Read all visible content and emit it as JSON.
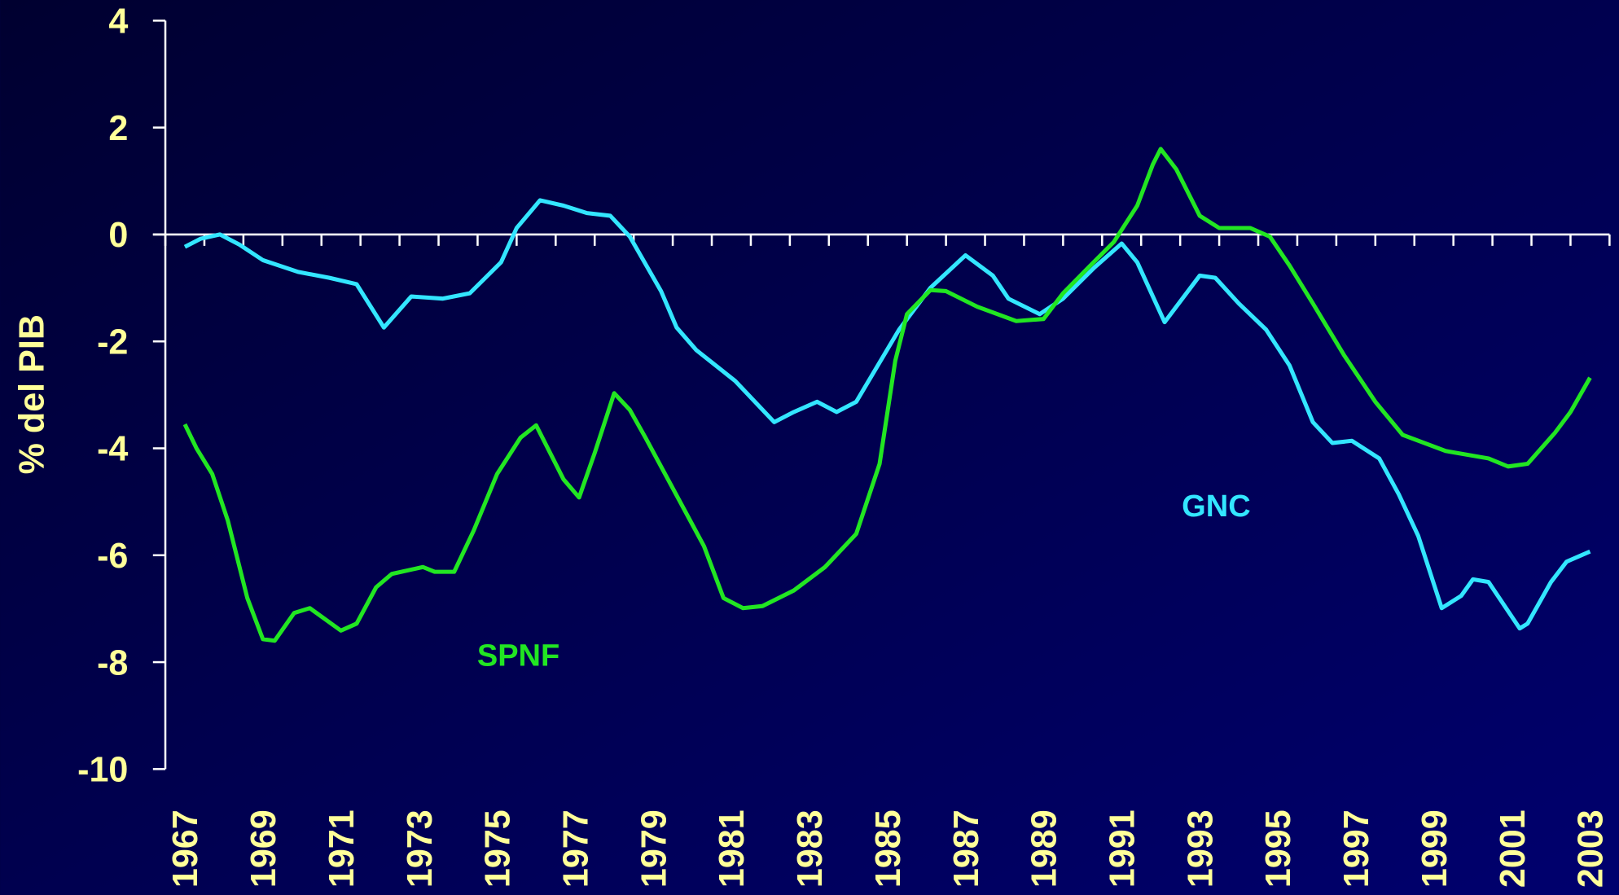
{
  "chart_data": {
    "type": "line",
    "ylabel": "% del PIB",
    "xlim": [
      1966.5,
      2003.5
    ],
    "xticks": [
      1967,
      1969,
      1971,
      1973,
      1975,
      1977,
      1979,
      1981,
      1983,
      1985,
      1987,
      1989,
      1991,
      1993,
      1995,
      1997,
      1999,
      2001,
      2003
    ],
    "ylim": [
      -10,
      4
    ],
    "yticks": [
      4,
      2,
      0,
      -2,
      -4,
      -6,
      -8,
      -10
    ],
    "series": [
      {
        "name": "GNC",
        "color": "#33e6ff",
        "x": [
          1967.0,
          1967.4,
          1967.9,
          1968.4,
          1969.0,
          1969.9,
          1970.7,
          1971.4,
          1972.1,
          1972.8,
          1973.6,
          1974.3,
          1975.1,
          1975.5,
          1976.1,
          1976.7,
          1977.3,
          1977.9,
          1978.4,
          1979.2,
          1979.6,
          1980.1,
          1981.1,
          1982.1,
          1982.6,
          1983.2,
          1983.7,
          1984.2,
          1985.3,
          1986.1,
          1987.0,
          1987.7,
          1988.1,
          1988.9,
          1989.5,
          1990.3,
          1991.0,
          1991.4,
          1992.1,
          1993.0,
          1993.4,
          1994.0,
          1994.7,
          1995.3,
          1995.9,
          1996.4,
          1996.9,
          1997.6,
          1998.1,
          1998.6,
          1999.2,
          1999.7,
          2000.0,
          2000.4,
          2001.2,
          2001.4,
          2002.0,
          2002.4,
          2003.0
        ],
        "values": [
          -0.23,
          -0.08,
          0,
          -0.19,
          -0.48,
          -0.7,
          -0.81,
          -0.93,
          -1.74,
          -1.16,
          -1.2,
          -1.1,
          -0.52,
          0.12,
          0.64,
          0.54,
          0.4,
          0.35,
          -0.04,
          -1.06,
          -1.74,
          -2.16,
          -2.74,
          -3.51,
          -3.32,
          -3.13,
          -3.32,
          -3.13,
          -1.78,
          -1.0,
          -0.39,
          -0.77,
          -1.2,
          -1.49,
          -1.2,
          -0.62,
          -0.17,
          -0.52,
          -1.64,
          -0.77,
          -0.81,
          -1.29,
          -1.78,
          -2.45,
          -3.51,
          -3.9,
          -3.86,
          -4.19,
          -4.86,
          -5.64,
          -6.99,
          -6.76,
          -6.45,
          -6.5,
          -7.37,
          -7.28,
          -6.5,
          -6.12,
          -5.93
        ]
      },
      {
        "name": "SPNF",
        "color": "#22e622",
        "x": [
          1967.0,
          1967.3,
          1967.7,
          1968.1,
          1968.6,
          1969.0,
          1969.3,
          1969.8,
          1970.2,
          1971.0,
          1971.4,
          1971.9,
          1972.3,
          1973.1,
          1973.4,
          1973.9,
          1974.4,
          1975.0,
          1975.6,
          1976.0,
          1976.7,
          1977.1,
          1977.5,
          1978.0,
          1978.4,
          1978.8,
          1980.3,
          1980.8,
          1981.3,
          1981.8,
          1982.6,
          1983.4,
          1984.2,
          1984.8,
          1985.2,
          1985.5,
          1986.1,
          1986.5,
          1987.3,
          1988.3,
          1989.0,
          1989.5,
          1990.2,
          1990.8,
          1991.4,
          1991.8,
          1992.0,
          1992.4,
          1993.0,
          1993.5,
          1994.3,
          1994.8,
          1995.3,
          1995.9,
          1996.7,
          1997.5,
          1998.2,
          1999.3,
          2000.4,
          2000.9,
          2001.4,
          2002.1,
          2002.5,
          2003.0
        ],
        "values": [
          -3.55,
          -4.0,
          -4.48,
          -5.35,
          -6.8,
          -7.57,
          -7.6,
          -7.08,
          -6.99,
          -7.41,
          -7.28,
          -6.6,
          -6.35,
          -6.22,
          -6.31,
          -6.31,
          -5.54,
          -4.48,
          -3.8,
          -3.57,
          -4.58,
          -4.92,
          -4.09,
          -2.97,
          -3.28,
          -3.8,
          -5.83,
          -6.8,
          -6.99,
          -6.95,
          -6.66,
          -6.22,
          -5.6,
          -4.29,
          -2.36,
          -1.49,
          -1.04,
          -1.06,
          -1.35,
          -1.62,
          -1.58,
          -1.1,
          -0.58,
          -0.14,
          0.54,
          1.31,
          1.6,
          1.22,
          0.35,
          0.12,
          0.12,
          -0.04,
          -0.58,
          -1.29,
          -2.26,
          -3.13,
          -3.75,
          -4.05,
          -4.19,
          -4.34,
          -4.29,
          -3.71,
          -3.32,
          -2.68
        ]
      }
    ]
  }
}
